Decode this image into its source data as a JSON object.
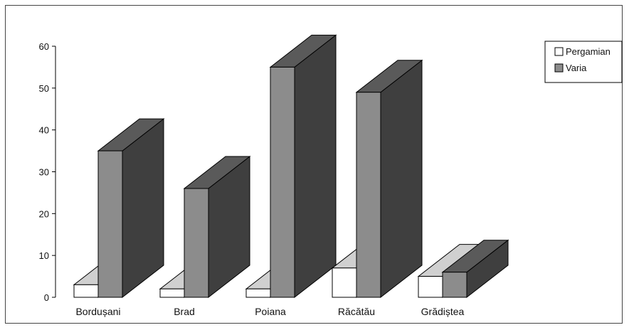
{
  "chart_data": {
    "type": "bar",
    "categories": [
      "Bordușani",
      "Brad",
      "Poiana",
      "Răcătău",
      "Grădiștea"
    ],
    "series": [
      {
        "name": "Pergamian",
        "values": [
          3,
          2,
          2,
          7,
          5
        ]
      },
      {
        "name": "Varia",
        "values": [
          35,
          26,
          55,
          49,
          6
        ]
      }
    ],
    "yticks": [
      0,
      10,
      20,
      30,
      40,
      50,
      60
    ],
    "ylim": [
      0,
      60
    ],
    "grid": false,
    "legend_position": "top-right",
    "colors": {
      "pergamian_front": "#ffffff",
      "pergamian_top": "#d0d0d0",
      "pergamian_side": "#b8b8b8",
      "varia_front": "#8c8c8c",
      "varia_top": "#5a5a5a",
      "varia_side": "#3f3f3f",
      "edge": "#000000"
    }
  }
}
